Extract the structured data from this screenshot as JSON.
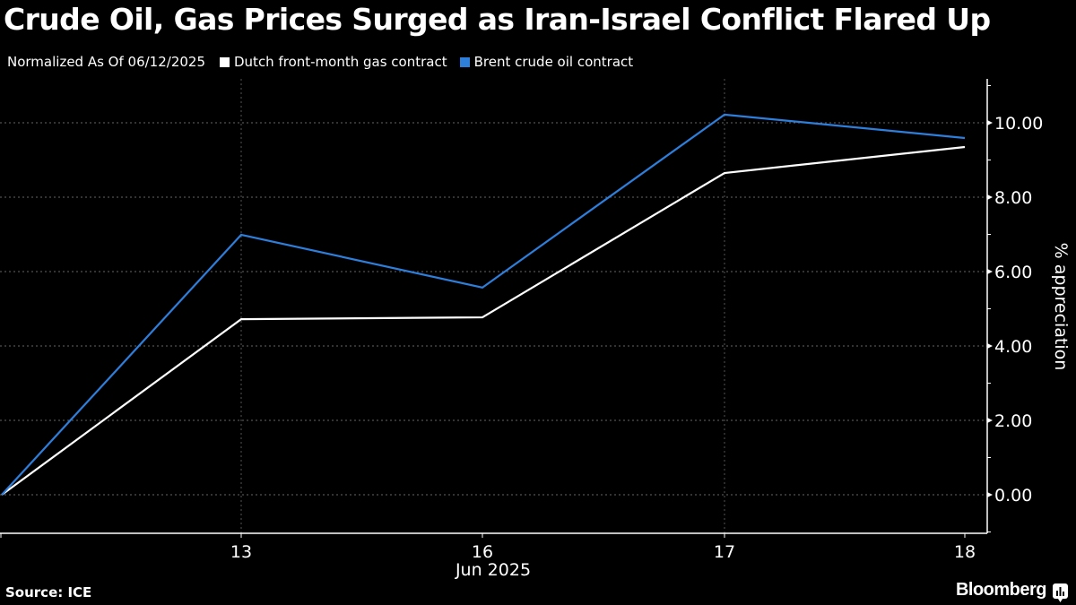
{
  "chart_data": {
    "type": "line",
    "title": "Crude Oil, Gas Prices Surged as Iran-Israel Conflict Flared Up",
    "subtitle": "Normalized As Of 06/12/2025",
    "xlabel": "Jun 2025",
    "ylabel": "% appreciation",
    "x": [
      "2025-06-12",
      "2025-06-13",
      "2025-06-16",
      "2025-06-17",
      "2025-06-18"
    ],
    "x_tick_labels": [
      "",
      "13",
      "16",
      "17",
      "18"
    ],
    "x_period_label": "Jun 2025",
    "ylim": [
      -1.05,
      11.2
    ],
    "y_ticks": [
      0,
      2,
      4,
      6,
      8,
      10
    ],
    "y_tick_labels": [
      "0.00",
      "2.00",
      "4.00",
      "6.00",
      "8.00",
      "10.00"
    ],
    "grid": true,
    "y_axis_side": "right",
    "legend_position": "top-left",
    "series": [
      {
        "name": "Dutch front-month gas contract",
        "color": "#ffffff",
        "values": [
          0,
          4.72,
          4.77,
          8.65,
          9.35
        ]
      },
      {
        "name": "Brent crude oil contract",
        "color": "#2e7fdc",
        "values": [
          0,
          6.99,
          5.57,
          10.22,
          9.59
        ]
      }
    ],
    "source": "Source: ICE"
  },
  "footer": {
    "source": "Source: ICE",
    "brand": "Bloomberg"
  }
}
